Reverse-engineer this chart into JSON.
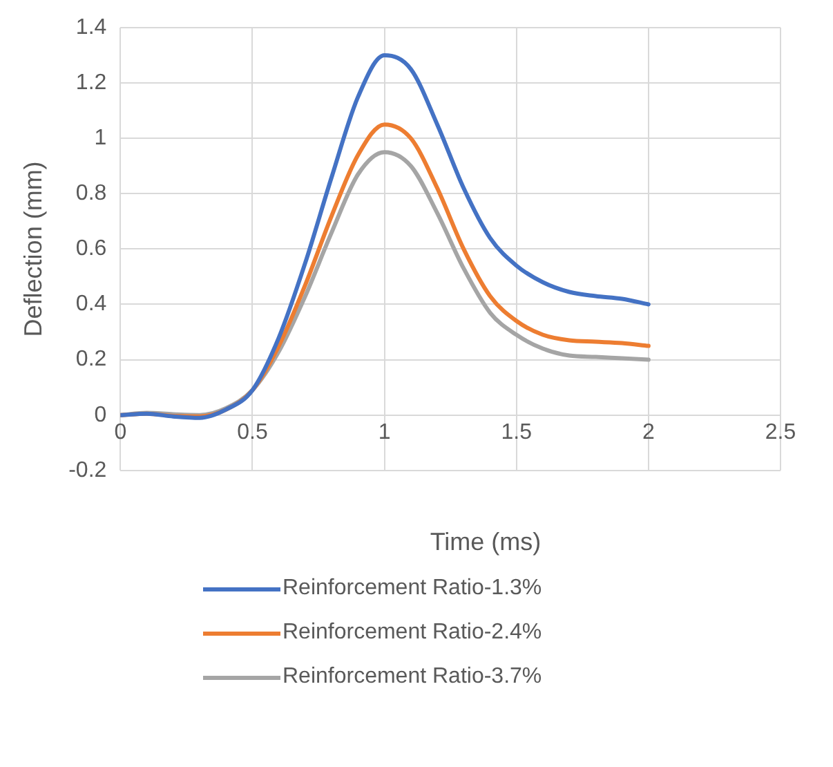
{
  "chart_data": {
    "type": "line",
    "xlabel": "Time (ms)",
    "ylabel": "Deflection (mm)",
    "x": [
      0,
      0.1,
      0.2,
      0.3,
      0.4,
      0.5,
      0.6,
      0.7,
      0.8,
      0.9,
      1.0,
      1.1,
      1.2,
      1.3,
      1.4,
      1.5,
      1.6,
      1.7,
      1.8,
      1.9,
      2.0
    ],
    "series": [
      {
        "name": "Reinforcement Ratio-1.3%",
        "color": "#4472c4",
        "values": [
          0,
          0.005,
          -0.005,
          -0.01,
          0.02,
          0.09,
          0.28,
          0.55,
          0.86,
          1.15,
          1.3,
          1.25,
          1.05,
          0.82,
          0.64,
          0.54,
          0.48,
          0.445,
          0.43,
          0.42,
          0.4
        ]
      },
      {
        "name": "Reinforcement Ratio-2.4%",
        "color": "#ed7d31",
        "values": [
          0,
          0.005,
          -0.003,
          -0.005,
          0.02,
          0.09,
          0.25,
          0.47,
          0.72,
          0.94,
          1.05,
          1.0,
          0.82,
          0.6,
          0.43,
          0.34,
          0.29,
          0.27,
          0.265,
          0.26,
          0.25
        ]
      },
      {
        "name": "Reinforcement Ratio-3.7%",
        "color": "#a5a5a5",
        "values": [
          0,
          0.008,
          0.003,
          0.0,
          0.025,
          0.09,
          0.23,
          0.43,
          0.66,
          0.87,
          0.95,
          0.9,
          0.73,
          0.53,
          0.37,
          0.29,
          0.24,
          0.215,
          0.21,
          0.205,
          0.2
        ]
      }
    ],
    "xlim": [
      0,
      2.5
    ],
    "xticks": [
      0,
      0.5,
      1,
      1.5,
      2,
      2.5
    ],
    "ylim": [
      -0.2,
      1.4
    ],
    "yticks": [
      -0.2,
      0,
      0.2,
      0.4,
      0.6,
      0.8,
      1,
      1.2,
      1.4
    ],
    "grid": true,
    "legend": "bottom",
    "marker": "none",
    "line_style": "solid"
  }
}
